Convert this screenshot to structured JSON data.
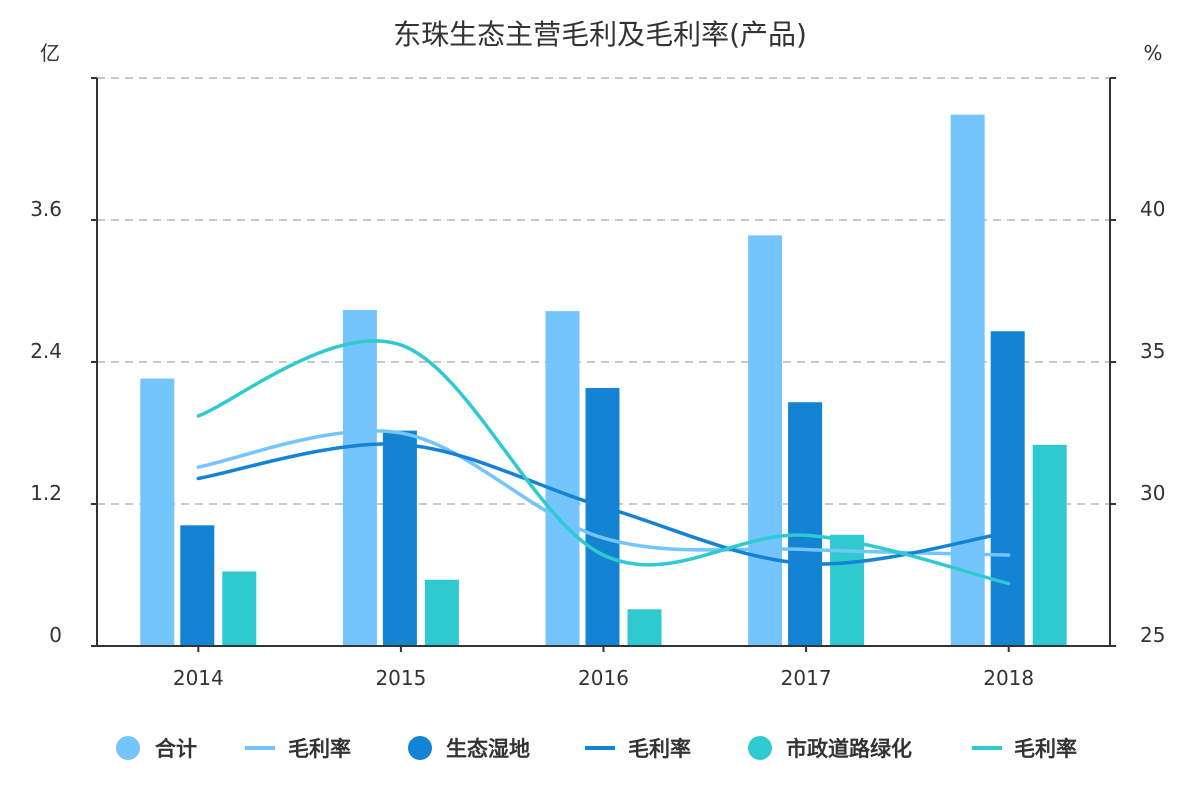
{
  "chart_data": {
    "type": "bar",
    "title": "东珠生态主营毛利及毛利率(产品)",
    "y_left_label": "亿",
    "y_right_label": "%",
    "categories": [
      "2014",
      "2015",
      "2016",
      "2017",
      "2018"
    ],
    "y_left": {
      "range": [
        0,
        4.8
      ],
      "ticks": [
        "0",
        "1.2",
        "2.4",
        "3.6"
      ],
      "tick_values": [
        0,
        1.2,
        2.4,
        3.6
      ]
    },
    "y_right": {
      "range": [
        25,
        45
      ],
      "ticks": [
        "25",
        "30",
        "35",
        "40"
      ],
      "tick_values": [
        25,
        30,
        35,
        40
      ]
    },
    "grid": true,
    "legend_position": "bottom",
    "series": [
      {
        "name": "合计",
        "type": "bar",
        "axis": "left",
        "color": "#74C5FD",
        "values": [
          2.26,
          2.84,
          2.83,
          3.47,
          4.49
        ]
      },
      {
        "name": "毛利率",
        "type": "line",
        "axis": "right",
        "color": "#74C5FD",
        "values": [
          31.3,
          32.5,
          28.8,
          28.4,
          28.2
        ]
      },
      {
        "name": "生态湿地",
        "type": "bar",
        "axis": "left",
        "color": "#1483D4",
        "values": [
          1.02,
          1.82,
          2.18,
          2.06,
          2.66
        ]
      },
      {
        "name": "毛利率",
        "type": "line",
        "axis": "right",
        "color": "#1483D4",
        "values": [
          30.9,
          32.1,
          29.9,
          27.9,
          29.0
        ]
      },
      {
        "name": "市政道路绿化",
        "type": "bar",
        "axis": "left",
        "color": "#2ECAD0",
        "values": [
          0.63,
          0.56,
          0.31,
          0.94,
          1.7
        ]
      },
      {
        "name": "毛利率",
        "type": "line",
        "axis": "right",
        "color": "#2ECAD0",
        "values": [
          33.1,
          35.6,
          28.2,
          28.9,
          27.2
        ]
      }
    ]
  }
}
